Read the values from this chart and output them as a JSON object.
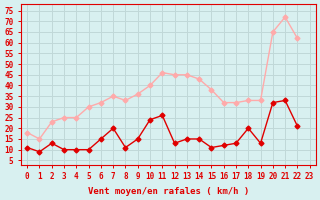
{
  "hours": [
    0,
    1,
    2,
    3,
    4,
    5,
    6,
    7,
    8,
    9,
    10,
    11,
    12,
    13,
    14,
    15,
    16,
    17,
    18,
    19,
    20,
    21,
    22,
    23
  ],
  "wind_avg": [
    11,
    9,
    13,
    10,
    10,
    10,
    15,
    20,
    11,
    15,
    24,
    26,
    13,
    15,
    15,
    11,
    12,
    13,
    20,
    13,
    32,
    33,
    21
  ],
  "wind_gust": [
    18,
    15,
    23,
    25,
    25,
    30,
    32,
    35,
    33,
    36,
    40,
    46,
    45,
    45,
    43,
    38,
    32,
    32,
    33,
    33,
    65,
    72,
    62
  ],
  "avg_color": "#e00000",
  "gust_color": "#ffaaaa",
  "bg_color": "#d8f0f0",
  "grid_color": "#c0d8d8",
  "axis_color": "#e00000",
  "xlabel": "Vent moyen/en rafales ( km/h )",
  "yticks": [
    5,
    10,
    15,
    20,
    25,
    30,
    35,
    40,
    45,
    50,
    55,
    60,
    65,
    70,
    75
  ],
  "ylim": [
    3,
    78
  ],
  "xlim": [
    -0.5,
    23.5
  ]
}
